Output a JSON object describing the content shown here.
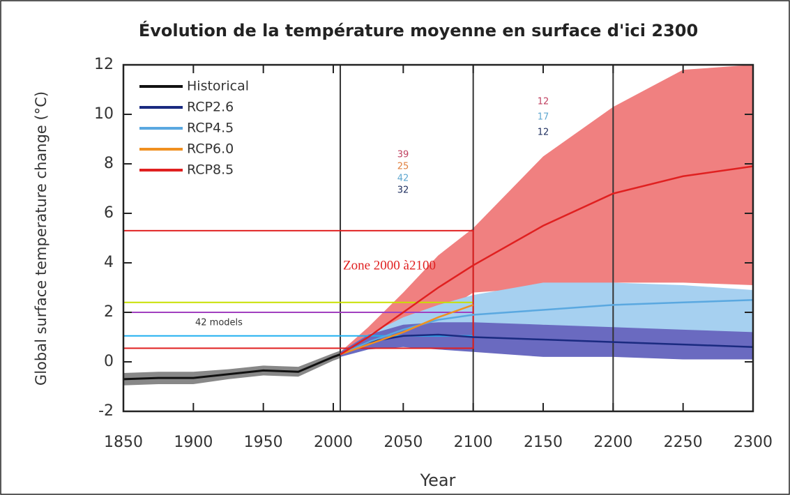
{
  "chart_data": {
    "type": "line",
    "title": "Évolution de la température moyenne en surface d'ici 2300",
    "xlabel": "Year",
    "ylabel": "Global surface temperature change (°C)",
    "x": [
      1850,
      1875,
      1900,
      1925,
      1950,
      1975,
      2000,
      2005,
      2025,
      2050,
      2075,
      2100,
      2150,
      2200,
      2250,
      2300
    ],
    "series": [
      {
        "name": "Historical",
        "color": "#111111",
        "band_color": "#888888",
        "values": [
          -0.7,
          -0.65,
          -0.65,
          -0.5,
          -0.35,
          -0.4,
          0.2,
          0.3,
          null,
          null,
          null,
          null,
          null,
          null,
          null,
          null
        ],
        "lower": [
          -0.95,
          -0.9,
          -0.9,
          -0.7,
          -0.55,
          -0.6,
          0.05,
          0.15,
          null,
          null,
          null,
          null,
          null,
          null,
          null,
          null
        ],
        "upper": [
          -0.45,
          -0.4,
          -0.4,
          -0.3,
          -0.15,
          -0.2,
          0.35,
          0.45,
          null,
          null,
          null,
          null,
          null,
          null,
          null,
          null
        ]
      },
      {
        "name": "RCP8.5",
        "color": "#e02020",
        "band_color": "#f08080",
        "values": [
          null,
          null,
          null,
          null,
          null,
          null,
          null,
          0.3,
          1.0,
          2.0,
          3.0,
          3.9,
          5.5,
          6.8,
          7.5,
          7.9
        ],
        "lower": [
          null,
          null,
          null,
          null,
          null,
          null,
          null,
          0.2,
          0.6,
          1.2,
          1.9,
          2.8,
          3.0,
          3.2,
          3.2,
          3.1
        ],
        "upper": [
          null,
          null,
          null,
          null,
          null,
          null,
          null,
          0.4,
          1.4,
          2.8,
          4.3,
          5.4,
          8.3,
          10.3,
          11.8,
          12
        ]
      },
      {
        "name": "RCP4.5",
        "color": "#5aa8e0",
        "band_color": "#a6d0f0",
        "values": [
          null,
          null,
          null,
          null,
          null,
          null,
          null,
          0.3,
          0.8,
          1.3,
          1.7,
          1.9,
          2.1,
          2.3,
          2.4,
          2.5
        ],
        "lower": [
          null,
          null,
          null,
          null,
          null,
          null,
          null,
          0.2,
          0.5,
          0.8,
          1.1,
          1.3,
          1.5,
          1.3,
          1.2,
          1.1
        ],
        "upper": [
          null,
          null,
          null,
          null,
          null,
          null,
          null,
          0.4,
          1.1,
          1.8,
          2.3,
          2.7,
          3.2,
          3.2,
          3.1,
          2.9
        ]
      },
      {
        "name": "RCP2.6",
        "color": "#1a2a80",
        "band_color": "#6a6ac0",
        "values": [
          null,
          null,
          null,
          null,
          null,
          null,
          null,
          0.3,
          0.8,
          1.05,
          1.1,
          1.0,
          0.9,
          0.8,
          0.7,
          0.6
        ],
        "lower": [
          null,
          null,
          null,
          null,
          null,
          null,
          null,
          0.2,
          0.5,
          0.6,
          0.5,
          0.4,
          0.2,
          0.2,
          0.1,
          0.1
        ],
        "upper": [
          null,
          null,
          null,
          null,
          null,
          null,
          null,
          0.4,
          1.1,
          1.5,
          1.6,
          1.6,
          1.5,
          1.4,
          1.3,
          1.2
        ]
      },
      {
        "name": "RCP6.0",
        "color": "#f09020",
        "values": [
          null,
          null,
          null,
          null,
          null,
          null,
          null,
          0.3,
          0.7,
          1.2,
          1.8,
          2.3,
          null,
          null,
          null,
          null
        ]
      }
    ],
    "legend_order": [
      0,
      3,
      2,
      4,
      1
    ],
    "legend": "upper left",
    "xlim": [
      1850,
      2300
    ],
    "ylim": [
      -2,
      12
    ],
    "xticks": [
      1850,
      1900,
      1950,
      2000,
      2050,
      2100,
      2150,
      2200,
      2250,
      2300
    ],
    "yticks": [
      -2,
      0,
      2,
      4,
      6,
      8,
      10,
      12
    ],
    "vlines": [
      2005,
      2100,
      2200
    ],
    "hlines": [
      {
        "value": 2.4,
        "color": "#c8e000",
        "x_range": [
          1850,
          2100
        ]
      },
      {
        "value": 2.0,
        "color": "#a040c0",
        "x_range": [
          1850,
          2100
        ]
      },
      {
        "value": 1.05,
        "color": "#20b0f0",
        "x_range": [
          1850,
          2100
        ]
      }
    ],
    "zone": {
      "label": "Zone 2000 à2100",
      "x_range": [
        1850,
        2100
      ],
      "y_range": [
        0.55,
        5.3
      ],
      "color": "#e02020"
    },
    "models_label": "42 models",
    "model_counts": [
      [
        {
          "text": "39",
          "color": "#c04060"
        },
        {
          "text": "25",
          "color": "#e08040"
        },
        {
          "text": "42",
          "color": "#60a8d0"
        },
        {
          "text": "32",
          "color": "#203060"
        }
      ],
      [
        {
          "text": "12",
          "color": "#c04060"
        },
        {
          "text": "17",
          "color": "#60a8d0"
        },
        {
          "text": "12",
          "color": "#203060"
        }
      ]
    ]
  }
}
